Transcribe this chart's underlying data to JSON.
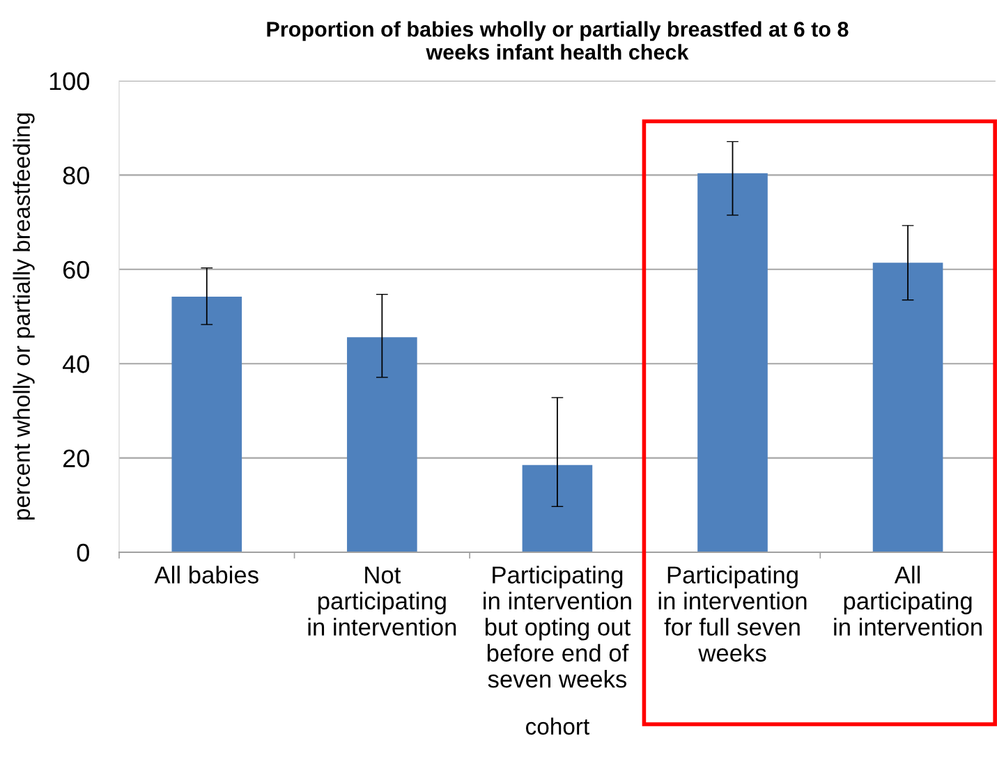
{
  "chart_data": {
    "type": "bar",
    "title": "Proportion of babies wholly or partially breastfed at 6 to 8\nweeks infant health check",
    "xlabel": "cohort",
    "ylabel": "percent wholly or partially breastfeeding",
    "categories": [
      "All babies",
      "Not\nparticipating\nin intervention",
      "Participating\nin intervention\nbut opting out\nbefore end of\nseven weeks",
      "Participating\nin intervention\nfor full seven\nweeks",
      "All\nparticipating\nin intervention"
    ],
    "values": [
      54.2,
      45.6,
      18.5,
      80.4,
      61.4
    ],
    "errors": [
      [
        48.3,
        60.3
      ],
      [
        37.1,
        54.7
      ],
      [
        9.7,
        32.8
      ],
      [
        71.5,
        87.1
      ],
      [
        53.5,
        69.3
      ]
    ],
    "color": "#4f81bd",
    "ylim": [
      0,
      100
    ],
    "yticks": [
      0,
      20,
      40,
      60,
      80,
      100
    ],
    "grid": "y"
  }
}
